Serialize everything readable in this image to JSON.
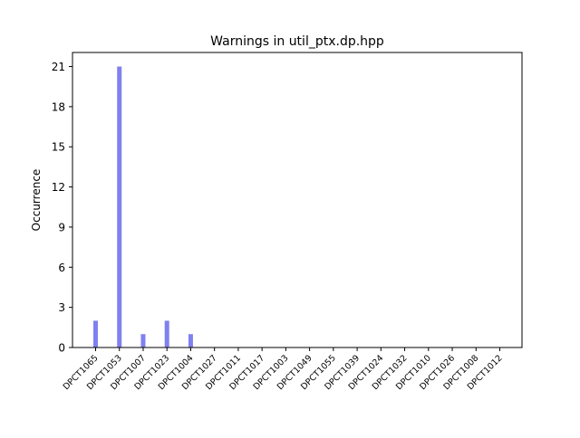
{
  "chart_data": {
    "type": "bar",
    "title": "Warnings in util_ptx.dp.hpp",
    "xlabel": "",
    "ylabel": "Occurrence",
    "categories": [
      "DPCT1065",
      "DPCT1053",
      "DPCT1007",
      "DPCT1023",
      "DPCT1004",
      "DPCT1027",
      "DPCT1011",
      "DPCT1017",
      "DPCT1003",
      "DPCT1049",
      "DPCT1055",
      "DPCT1039",
      "DPCT1024",
      "DPCT1032",
      "DPCT1010",
      "DPCT1026",
      "DPCT1008",
      "DPCT1012"
    ],
    "values": [
      2,
      21,
      1,
      2,
      1,
      0,
      0,
      0,
      0,
      0,
      0,
      0,
      0,
      0,
      0,
      0,
      0,
      0
    ],
    "ylim": [
      0,
      22.05
    ],
    "yticks": [
      0,
      3,
      6,
      9,
      12,
      15,
      18,
      21
    ],
    "bar_color": "#8080f0",
    "grid": false,
    "legend": "none"
  }
}
